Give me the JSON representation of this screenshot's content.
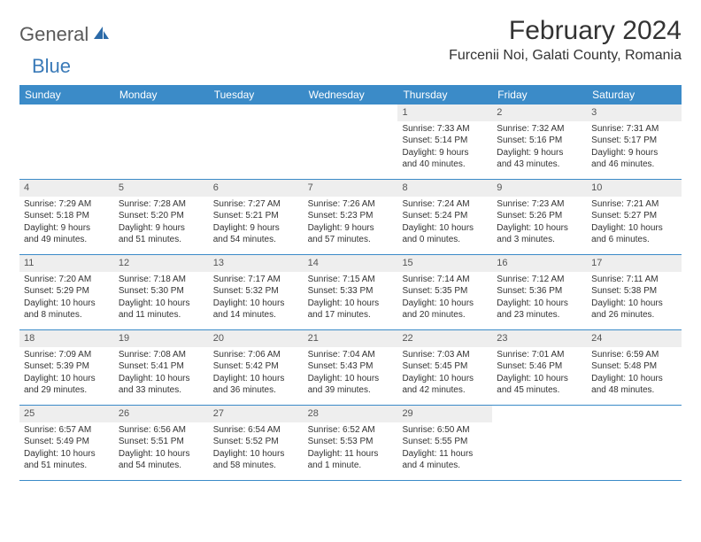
{
  "brand": {
    "part1": "General",
    "part2": "Blue"
  },
  "title": "February 2024",
  "location": "Furcenii Noi, Galati County, Romania",
  "colors": {
    "header_bg": "#3b8bc8",
    "header_text": "#ffffff",
    "daynum_bg": "#eeeeee",
    "border": "#3b8bc8",
    "text": "#333333",
    "logo_gray": "#5a5a5a",
    "logo_blue": "#3a7ab8"
  },
  "day_names": [
    "Sunday",
    "Monday",
    "Tuesday",
    "Wednesday",
    "Thursday",
    "Friday",
    "Saturday"
  ],
  "weeks": [
    [
      {
        "n": "",
        "sr": "",
        "ss": "",
        "dl1": "",
        "dl2": ""
      },
      {
        "n": "",
        "sr": "",
        "ss": "",
        "dl1": "",
        "dl2": ""
      },
      {
        "n": "",
        "sr": "",
        "ss": "",
        "dl1": "",
        "dl2": ""
      },
      {
        "n": "",
        "sr": "",
        "ss": "",
        "dl1": "",
        "dl2": ""
      },
      {
        "n": "1",
        "sr": "Sunrise: 7:33 AM",
        "ss": "Sunset: 5:14 PM",
        "dl1": "Daylight: 9 hours",
        "dl2": "and 40 minutes."
      },
      {
        "n": "2",
        "sr": "Sunrise: 7:32 AM",
        "ss": "Sunset: 5:16 PM",
        "dl1": "Daylight: 9 hours",
        "dl2": "and 43 minutes."
      },
      {
        "n": "3",
        "sr": "Sunrise: 7:31 AM",
        "ss": "Sunset: 5:17 PM",
        "dl1": "Daylight: 9 hours",
        "dl2": "and 46 minutes."
      }
    ],
    [
      {
        "n": "4",
        "sr": "Sunrise: 7:29 AM",
        "ss": "Sunset: 5:18 PM",
        "dl1": "Daylight: 9 hours",
        "dl2": "and 49 minutes."
      },
      {
        "n": "5",
        "sr": "Sunrise: 7:28 AM",
        "ss": "Sunset: 5:20 PM",
        "dl1": "Daylight: 9 hours",
        "dl2": "and 51 minutes."
      },
      {
        "n": "6",
        "sr": "Sunrise: 7:27 AM",
        "ss": "Sunset: 5:21 PM",
        "dl1": "Daylight: 9 hours",
        "dl2": "and 54 minutes."
      },
      {
        "n": "7",
        "sr": "Sunrise: 7:26 AM",
        "ss": "Sunset: 5:23 PM",
        "dl1": "Daylight: 9 hours",
        "dl2": "and 57 minutes."
      },
      {
        "n": "8",
        "sr": "Sunrise: 7:24 AM",
        "ss": "Sunset: 5:24 PM",
        "dl1": "Daylight: 10 hours",
        "dl2": "and 0 minutes."
      },
      {
        "n": "9",
        "sr": "Sunrise: 7:23 AM",
        "ss": "Sunset: 5:26 PM",
        "dl1": "Daylight: 10 hours",
        "dl2": "and 3 minutes."
      },
      {
        "n": "10",
        "sr": "Sunrise: 7:21 AM",
        "ss": "Sunset: 5:27 PM",
        "dl1": "Daylight: 10 hours",
        "dl2": "and 6 minutes."
      }
    ],
    [
      {
        "n": "11",
        "sr": "Sunrise: 7:20 AM",
        "ss": "Sunset: 5:29 PM",
        "dl1": "Daylight: 10 hours",
        "dl2": "and 8 minutes."
      },
      {
        "n": "12",
        "sr": "Sunrise: 7:18 AM",
        "ss": "Sunset: 5:30 PM",
        "dl1": "Daylight: 10 hours",
        "dl2": "and 11 minutes."
      },
      {
        "n": "13",
        "sr": "Sunrise: 7:17 AM",
        "ss": "Sunset: 5:32 PM",
        "dl1": "Daylight: 10 hours",
        "dl2": "and 14 minutes."
      },
      {
        "n": "14",
        "sr": "Sunrise: 7:15 AM",
        "ss": "Sunset: 5:33 PM",
        "dl1": "Daylight: 10 hours",
        "dl2": "and 17 minutes."
      },
      {
        "n": "15",
        "sr": "Sunrise: 7:14 AM",
        "ss": "Sunset: 5:35 PM",
        "dl1": "Daylight: 10 hours",
        "dl2": "and 20 minutes."
      },
      {
        "n": "16",
        "sr": "Sunrise: 7:12 AM",
        "ss": "Sunset: 5:36 PM",
        "dl1": "Daylight: 10 hours",
        "dl2": "and 23 minutes."
      },
      {
        "n": "17",
        "sr": "Sunrise: 7:11 AM",
        "ss": "Sunset: 5:38 PM",
        "dl1": "Daylight: 10 hours",
        "dl2": "and 26 minutes."
      }
    ],
    [
      {
        "n": "18",
        "sr": "Sunrise: 7:09 AM",
        "ss": "Sunset: 5:39 PM",
        "dl1": "Daylight: 10 hours",
        "dl2": "and 29 minutes."
      },
      {
        "n": "19",
        "sr": "Sunrise: 7:08 AM",
        "ss": "Sunset: 5:41 PM",
        "dl1": "Daylight: 10 hours",
        "dl2": "and 33 minutes."
      },
      {
        "n": "20",
        "sr": "Sunrise: 7:06 AM",
        "ss": "Sunset: 5:42 PM",
        "dl1": "Daylight: 10 hours",
        "dl2": "and 36 minutes."
      },
      {
        "n": "21",
        "sr": "Sunrise: 7:04 AM",
        "ss": "Sunset: 5:43 PM",
        "dl1": "Daylight: 10 hours",
        "dl2": "and 39 minutes."
      },
      {
        "n": "22",
        "sr": "Sunrise: 7:03 AM",
        "ss": "Sunset: 5:45 PM",
        "dl1": "Daylight: 10 hours",
        "dl2": "and 42 minutes."
      },
      {
        "n": "23",
        "sr": "Sunrise: 7:01 AM",
        "ss": "Sunset: 5:46 PM",
        "dl1": "Daylight: 10 hours",
        "dl2": "and 45 minutes."
      },
      {
        "n": "24",
        "sr": "Sunrise: 6:59 AM",
        "ss": "Sunset: 5:48 PM",
        "dl1": "Daylight: 10 hours",
        "dl2": "and 48 minutes."
      }
    ],
    [
      {
        "n": "25",
        "sr": "Sunrise: 6:57 AM",
        "ss": "Sunset: 5:49 PM",
        "dl1": "Daylight: 10 hours",
        "dl2": "and 51 minutes."
      },
      {
        "n": "26",
        "sr": "Sunrise: 6:56 AM",
        "ss": "Sunset: 5:51 PM",
        "dl1": "Daylight: 10 hours",
        "dl2": "and 54 minutes."
      },
      {
        "n": "27",
        "sr": "Sunrise: 6:54 AM",
        "ss": "Sunset: 5:52 PM",
        "dl1": "Daylight: 10 hours",
        "dl2": "and 58 minutes."
      },
      {
        "n": "28",
        "sr": "Sunrise: 6:52 AM",
        "ss": "Sunset: 5:53 PM",
        "dl1": "Daylight: 11 hours",
        "dl2": "and 1 minute."
      },
      {
        "n": "29",
        "sr": "Sunrise: 6:50 AM",
        "ss": "Sunset: 5:55 PM",
        "dl1": "Daylight: 11 hours",
        "dl2": "and 4 minutes."
      },
      {
        "n": "",
        "sr": "",
        "ss": "",
        "dl1": "",
        "dl2": ""
      },
      {
        "n": "",
        "sr": "",
        "ss": "",
        "dl1": "",
        "dl2": ""
      }
    ]
  ]
}
